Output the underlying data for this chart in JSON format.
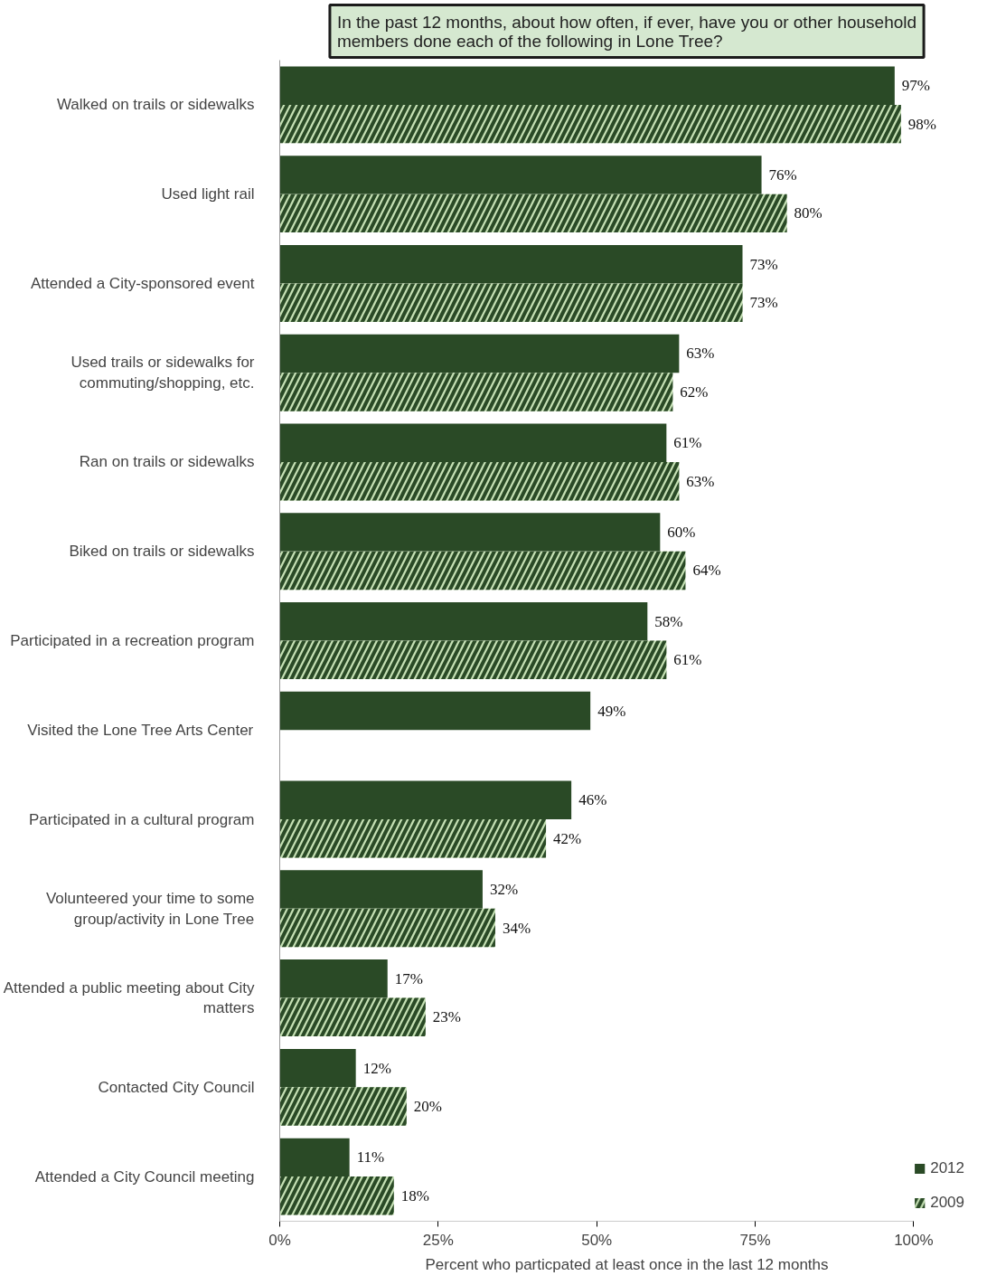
{
  "chart_data": {
    "type": "bar",
    "orientation": "horizontal",
    "title": "In the past 12 months, about how often, if ever, have you or other household members done each of the following in Lone Tree?",
    "xlabel": "Percent who particpated at least once in the last 12 months",
    "categories": [
      "Walked on trails or sidewalks",
      "Used light rail",
      "Attended a City-sponsored event",
      "Used trails or sidewalks for commuting/shopping, etc.",
      "Ran on trails or sidewalks",
      "Biked on trails or sidewalks",
      "Participated in a recreation program",
      "Visited the Lone Tree Arts Center",
      "Participated in a cultural program",
      "Volunteered your time to some group/activity in Lone Tree",
      "Attended a public meeting about City matters",
      "Contacted City Council",
      "Attended a City Council meeting"
    ],
    "series": [
      {
        "name": "2012",
        "color": "#2a4a26",
        "values": [
          97,
          76,
          73,
          63,
          61,
          60,
          58,
          49,
          46,
          32,
          17,
          12,
          11
        ],
        "value_labels": [
          "97%",
          "76%",
          "73%",
          "63%",
          "61%",
          "60%",
          "58%",
          "49%",
          "46%",
          "32%",
          "17%",
          "12%",
          "11%"
        ]
      },
      {
        "name": "2009",
        "color": "#c5e0b4",
        "values": [
          98,
          80,
          73,
          62,
          63,
          64,
          61,
          null,
          42,
          34,
          23,
          20,
          18
        ],
        "value_labels": [
          "98%",
          "80%",
          "73%",
          "62%",
          "63%",
          "64%",
          "61%",
          null,
          "42%",
          "34%",
          "23%",
          "20%",
          "18%"
        ]
      }
    ],
    "xlim": [
      0,
      100
    ],
    "xticks": [
      {
        "value": 0,
        "label": "0%"
      },
      {
        "value": 25,
        "label": "25%"
      },
      {
        "value": 50,
        "label": "50%"
      },
      {
        "value": 75,
        "label": "75%"
      },
      {
        "value": 100,
        "label": "100%"
      }
    ],
    "grid": false,
    "legend": "bottom right"
  }
}
